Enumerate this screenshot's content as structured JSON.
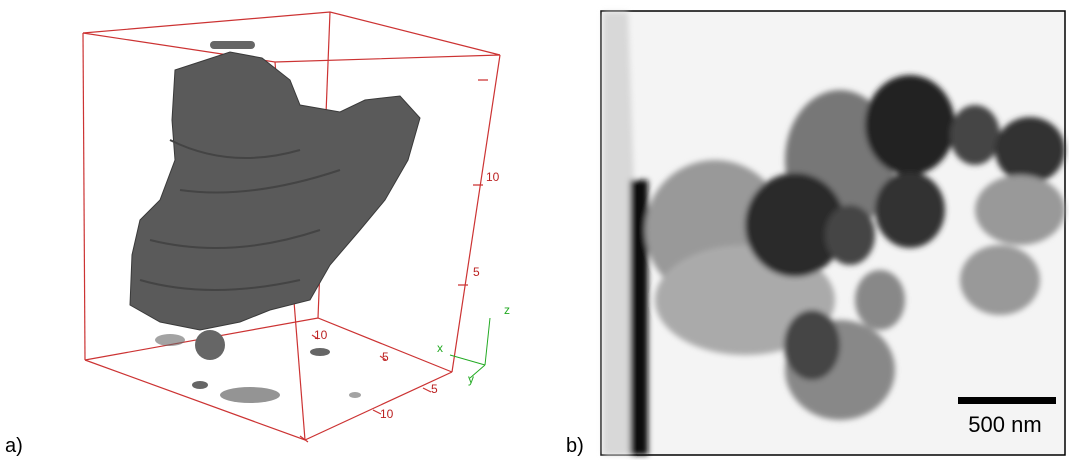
{
  "panels": [
    {
      "label": "a)",
      "tick_labels": [
        "10",
        "5",
        "10",
        "5",
        "5",
        "10"
      ],
      "axis_labels": [
        "x",
        "y",
        "z"
      ]
    },
    {
      "label": "b)",
      "scale_bar": "500 nm"
    }
  ]
}
